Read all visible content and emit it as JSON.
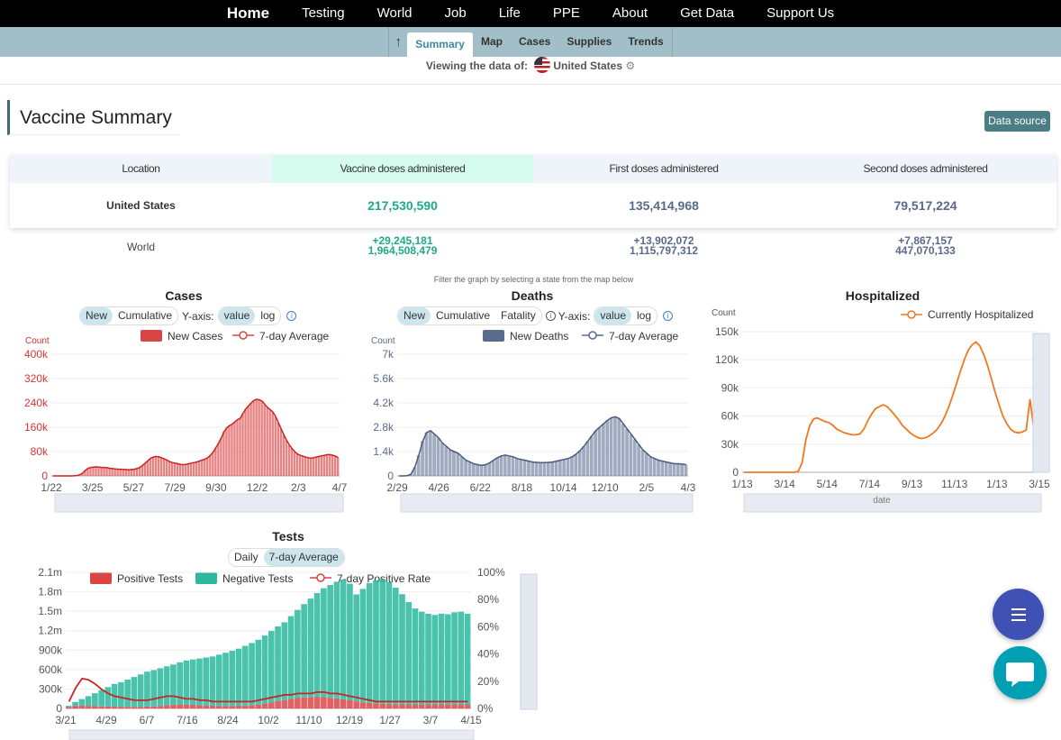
{
  "nav": {
    "items": [
      "Home",
      "Testing",
      "World",
      "Job",
      "Life",
      "PPE",
      "About",
      "Get Data",
      "Support Us"
    ]
  },
  "subnav": {
    "tabs": [
      "Summary",
      "Map",
      "Cases",
      "Supplies",
      "Trends"
    ],
    "active": "Summary"
  },
  "viewing": {
    "label": "Viewing the data of:",
    "location": "United States"
  },
  "page_title": "Vaccine Summary",
  "data_source_label": "Data source",
  "vaccine_table": {
    "headers": [
      "Location",
      "Vaccine doses administered",
      "First doses administered",
      "Second doses administered"
    ],
    "us": {
      "location": "United States",
      "doses": "217,530,590",
      "first": "135,414,968",
      "second": "79,517,224"
    },
    "world": {
      "location": "World",
      "doses_delta": "+29,245,181",
      "doses": "1,964,508,479",
      "first_delta": "+13,902,072",
      "first": "1,115,797,312",
      "second_delta": "+7,867,157",
      "second": "447,070,133"
    }
  },
  "filter_note": "Filter the graph by selecting a state from the map below",
  "controls": {
    "new": "New",
    "cumulative": "Cumulative",
    "fatality": "Fatality",
    "yaxis": "Y-axis:",
    "value": "value",
    "log": "log",
    "daily": "Daily",
    "avg7": "7-day Average",
    "info": "i"
  },
  "colors": {
    "cases": "#d94545",
    "deaths": "#5b6b8c",
    "hosp": "#f07820",
    "negative": "#2bb89e",
    "positive": "#d94545"
  },
  "chart_data": [
    {
      "id": "cases",
      "type": "bar",
      "title": "Cases",
      "ylabel": "Count",
      "legend": [
        "New Cases",
        "7-day Average"
      ],
      "x_ticks": [
        "1/22",
        "3/25",
        "5/27",
        "7/29",
        "9/30",
        "12/2",
        "2/3",
        "4/7"
      ],
      "y_ticks": [
        "0",
        "80k",
        "160k",
        "240k",
        "320k",
        "400k"
      ],
      "ylim": [
        0,
        400000
      ],
      "series": [
        {
          "name": "New Cases",
          "values": [
            0,
            0,
            0,
            0,
            0,
            0,
            0,
            0,
            500,
            1500,
            4000,
            9000,
            18000,
            25000,
            28000,
            29000,
            30000,
            29000,
            28000,
            28000,
            27000,
            25000,
            24000,
            23000,
            22000,
            22000,
            21000,
            21000,
            20000,
            21000,
            22000,
            24000,
            28000,
            34000,
            42000,
            50000,
            58000,
            62000,
            64000,
            63000,
            60000,
            56000,
            52000,
            47000,
            44000,
            42000,
            40000,
            38000,
            37000,
            38000,
            40000,
            42000,
            44000,
            46000,
            49000,
            52000,
            55000,
            60000,
            68000,
            78000,
            92000,
            108000,
            125000,
            145000,
            158000,
            165000,
            170000,
            178000,
            185000,
            190000,
            205000,
            220000,
            230000,
            240000,
            248000,
            252000,
            250000,
            246000,
            235000,
            225000,
            218000,
            210000,
            195000,
            175000,
            155000,
            135000,
            118000,
            102000,
            90000,
            80000,
            72000,
            68000,
            65000,
            62000,
            60000,
            58000,
            60000,
            62000,
            64000,
            66000,
            68000,
            70000,
            70000,
            68000,
            65000,
            60000
          ]
        },
        {
          "name": "7-day Average",
          "values": [
            0,
            0,
            0,
            0,
            0,
            0,
            0,
            0,
            600,
            1500,
            4000,
            9000,
            18000,
            25000,
            28000,
            29000,
            30000,
            29000,
            28000,
            28000,
            27000,
            25000,
            24000,
            23000,
            22000,
            22000,
            21000,
            21000,
            20000,
            21000,
            22000,
            24000,
            28000,
            34000,
            42000,
            50000,
            58000,
            62000,
            64000,
            63000,
            60000,
            56000,
            52000,
            47000,
            44000,
            42000,
            40000,
            38000,
            37000,
            38000,
            40000,
            42000,
            44000,
            46000,
            49000,
            52000,
            55000,
            60000,
            68000,
            78000,
            92000,
            108000,
            125000,
            145000,
            158000,
            165000,
            170000,
            178000,
            185000,
            190000,
            205000,
            220000,
            230000,
            240000,
            248000,
            252000,
            250000,
            246000,
            235000,
            225000,
            218000,
            210000,
            195000,
            175000,
            155000,
            135000,
            118000,
            102000,
            90000,
            80000,
            72000,
            68000,
            65000,
            62000,
            60000,
            58000,
            60000,
            62000,
            64000,
            66000,
            68000,
            70000,
            70000,
            68000,
            65000,
            60000
          ]
        }
      ]
    },
    {
      "id": "deaths",
      "type": "bar",
      "title": "Deaths",
      "ylabel": "Count",
      "legend": [
        "New Deaths",
        "7-day Average"
      ],
      "x_ticks": [
        "2/29",
        "4/26",
        "6/22",
        "8/18",
        "10/14",
        "12/10",
        "2/5",
        "4/3"
      ],
      "y_ticks": [
        "0",
        "1.4k",
        "2.8k",
        "4.2k",
        "5.6k",
        "7k"
      ],
      "ylim": [
        0,
        7000
      ],
      "series": [
        {
          "name": "New Deaths",
          "values": [
            0,
            0,
            10,
            100,
            500,
            1200,
            2000,
            2500,
            2600,
            2400,
            2200,
            1900,
            1700,
            1500,
            1400,
            1300,
            1100,
            900,
            800,
            700,
            650,
            600,
            650,
            750,
            900,
            1050,
            1150,
            1200,
            1150,
            1100,
            1000,
            950,
            900,
            850,
            800,
            780,
            760,
            760,
            780,
            800,
            850,
            900,
            950,
            1000,
            1100,
            1250,
            1450,
            1700,
            2000,
            2300,
            2600,
            2800,
            3000,
            3200,
            3350,
            3400,
            3300,
            3000,
            2700,
            2400,
            2100,
            1800,
            1500,
            1300,
            1100,
            1000,
            900,
            850,
            800,
            750,
            700,
            700,
            680,
            650
          ]
        },
        {
          "name": "7-day Average",
          "values": [
            0,
            0,
            10,
            100,
            500,
            1200,
            2000,
            2500,
            2600,
            2400,
            2200,
            1900,
            1700,
            1500,
            1400,
            1300,
            1100,
            900,
            800,
            700,
            650,
            600,
            650,
            750,
            900,
            1050,
            1150,
            1200,
            1150,
            1100,
            1000,
            950,
            900,
            850,
            800,
            780,
            760,
            760,
            780,
            800,
            850,
            900,
            950,
            1000,
            1100,
            1250,
            1450,
            1700,
            2000,
            2300,
            2600,
            2800,
            3000,
            3200,
            3350,
            3400,
            3300,
            3000,
            2700,
            2400,
            2100,
            1800,
            1500,
            1300,
            1100,
            1000,
            900,
            850,
            800,
            750,
            700,
            700,
            680,
            650
          ]
        }
      ]
    },
    {
      "id": "hospitalized",
      "type": "line",
      "title": "Hospitalized",
      "ylabel": "Count",
      "xlabel": "date",
      "legend": [
        "Currently Hospitalized"
      ],
      "x_ticks": [
        "1/13",
        "3/14",
        "5/14",
        "7/14",
        "9/13",
        "11/13",
        "1/13",
        "3/15"
      ],
      "y_ticks": [
        "0",
        "30k",
        "60k",
        "90k",
        "120k",
        "150k"
      ],
      "ylim": [
        0,
        150000
      ],
      "series": [
        {
          "name": "Currently Hospitalized",
          "values": [
            0,
            0,
            0,
            0,
            0,
            0,
            0,
            0,
            0,
            0,
            0,
            0,
            0,
            0,
            1000,
            10000,
            35000,
            50000,
            57000,
            58000,
            56000,
            54000,
            53000,
            50000,
            46000,
            44000,
            42000,
            41000,
            40000,
            40000,
            41000,
            46000,
            55000,
            62000,
            68000,
            70000,
            72000,
            70000,
            66000,
            61000,
            56000,
            50000,
            46000,
            42000,
            39000,
            37000,
            36000,
            37000,
            39000,
            42000,
            46000,
            52000,
            60000,
            70000,
            82000,
            95000,
            108000,
            120000,
            130000,
            136000,
            139000,
            135000,
            126000,
            114000,
            100000,
            85000,
            72000,
            60000,
            52000,
            46000,
            43000,
            42000,
            43000,
            45000,
            78000,
            46000
          ]
        }
      ]
    },
    {
      "id": "tests",
      "type": "bar",
      "title": "Tests",
      "legend": [
        "Positive Tests",
        "Negative Tests",
        "7-day Positive Rate"
      ],
      "x_ticks": [
        "3/21",
        "4/29",
        "6/7",
        "7/16",
        "8/24",
        "10/2",
        "11/10",
        "12/19",
        "1/27",
        "3/7",
        "4/15"
      ],
      "y_ticks": [
        "0",
        "300k",
        "600k",
        "900k",
        "1.2m",
        "1.5m",
        "1.8m",
        "2.1m"
      ],
      "y2_ticks": [
        "0%",
        "20%",
        "40%",
        "60%",
        "80%",
        "100%"
      ],
      "ylim": [
        0,
        2100000
      ],
      "series": [
        {
          "name": "Negative Tests",
          "values": [
            20000,
            60000,
            100000,
            150000,
            200000,
            250000,
            300000,
            350000,
            380000,
            420000,
            460000,
            500000,
            540000,
            560000,
            580000,
            600000,
            620000,
            650000,
            680000,
            700000,
            720000,
            740000,
            760000,
            790000,
            820000,
            850000,
            880000,
            920000,
            960000,
            1000000,
            1050000,
            1100000,
            1150000,
            1200000,
            1280000,
            1360000,
            1440000,
            1520000,
            1600000,
            1680000,
            1740000,
            1800000,
            1850000,
            1800000,
            1650000,
            1750000,
            1850000,
            1900000,
            1920000,
            1880000,
            1800000,
            1700000,
            1580000,
            1480000,
            1430000,
            1400000,
            1380000,
            1400000,
            1390000,
            1420000,
            1430000,
            1400000
          ]
        },
        {
          "name": "Positive Tests",
          "values": [
            20000,
            40000,
            45000,
            40000,
            35000,
            32000,
            30000,
            28000,
            26000,
            25000,
            25000,
            26000,
            28000,
            32000,
            40000,
            50000,
            58000,
            62000,
            60000,
            56000,
            50000,
            46000,
            42000,
            40000,
            39000,
            40000,
            42000,
            45000,
            50000,
            60000,
            75000,
            95000,
            115000,
            130000,
            145000,
            160000,
            170000,
            175000,
            180000,
            175000,
            165000,
            155000,
            140000,
            125000,
            110000,
            95000,
            85000,
            78000,
            72000,
            68000,
            65000,
            63000,
            62000,
            62000,
            62000,
            62000,
            63000,
            63000,
            64000,
            64000,
            62000,
            62000
          ]
        },
        {
          "name": "7-day Positive Rate",
          "values": [
            5,
            15,
            22,
            21,
            18,
            14,
            11,
            9,
            8,
            7,
            6,
            6,
            6,
            7,
            8,
            9,
            9,
            8,
            7,
            7,
            6,
            6,
            5,
            5,
            5,
            5,
            5,
            5,
            5,
            6,
            7,
            8,
            9,
            10,
            10,
            11,
            11,
            11,
            12,
            12,
            11,
            11,
            10,
            9,
            8,
            7,
            6,
            5,
            5,
            5,
            5,
            5,
            5,
            5,
            5,
            5,
            5,
            5,
            5,
            5,
            5,
            5
          ]
        }
      ]
    }
  ]
}
